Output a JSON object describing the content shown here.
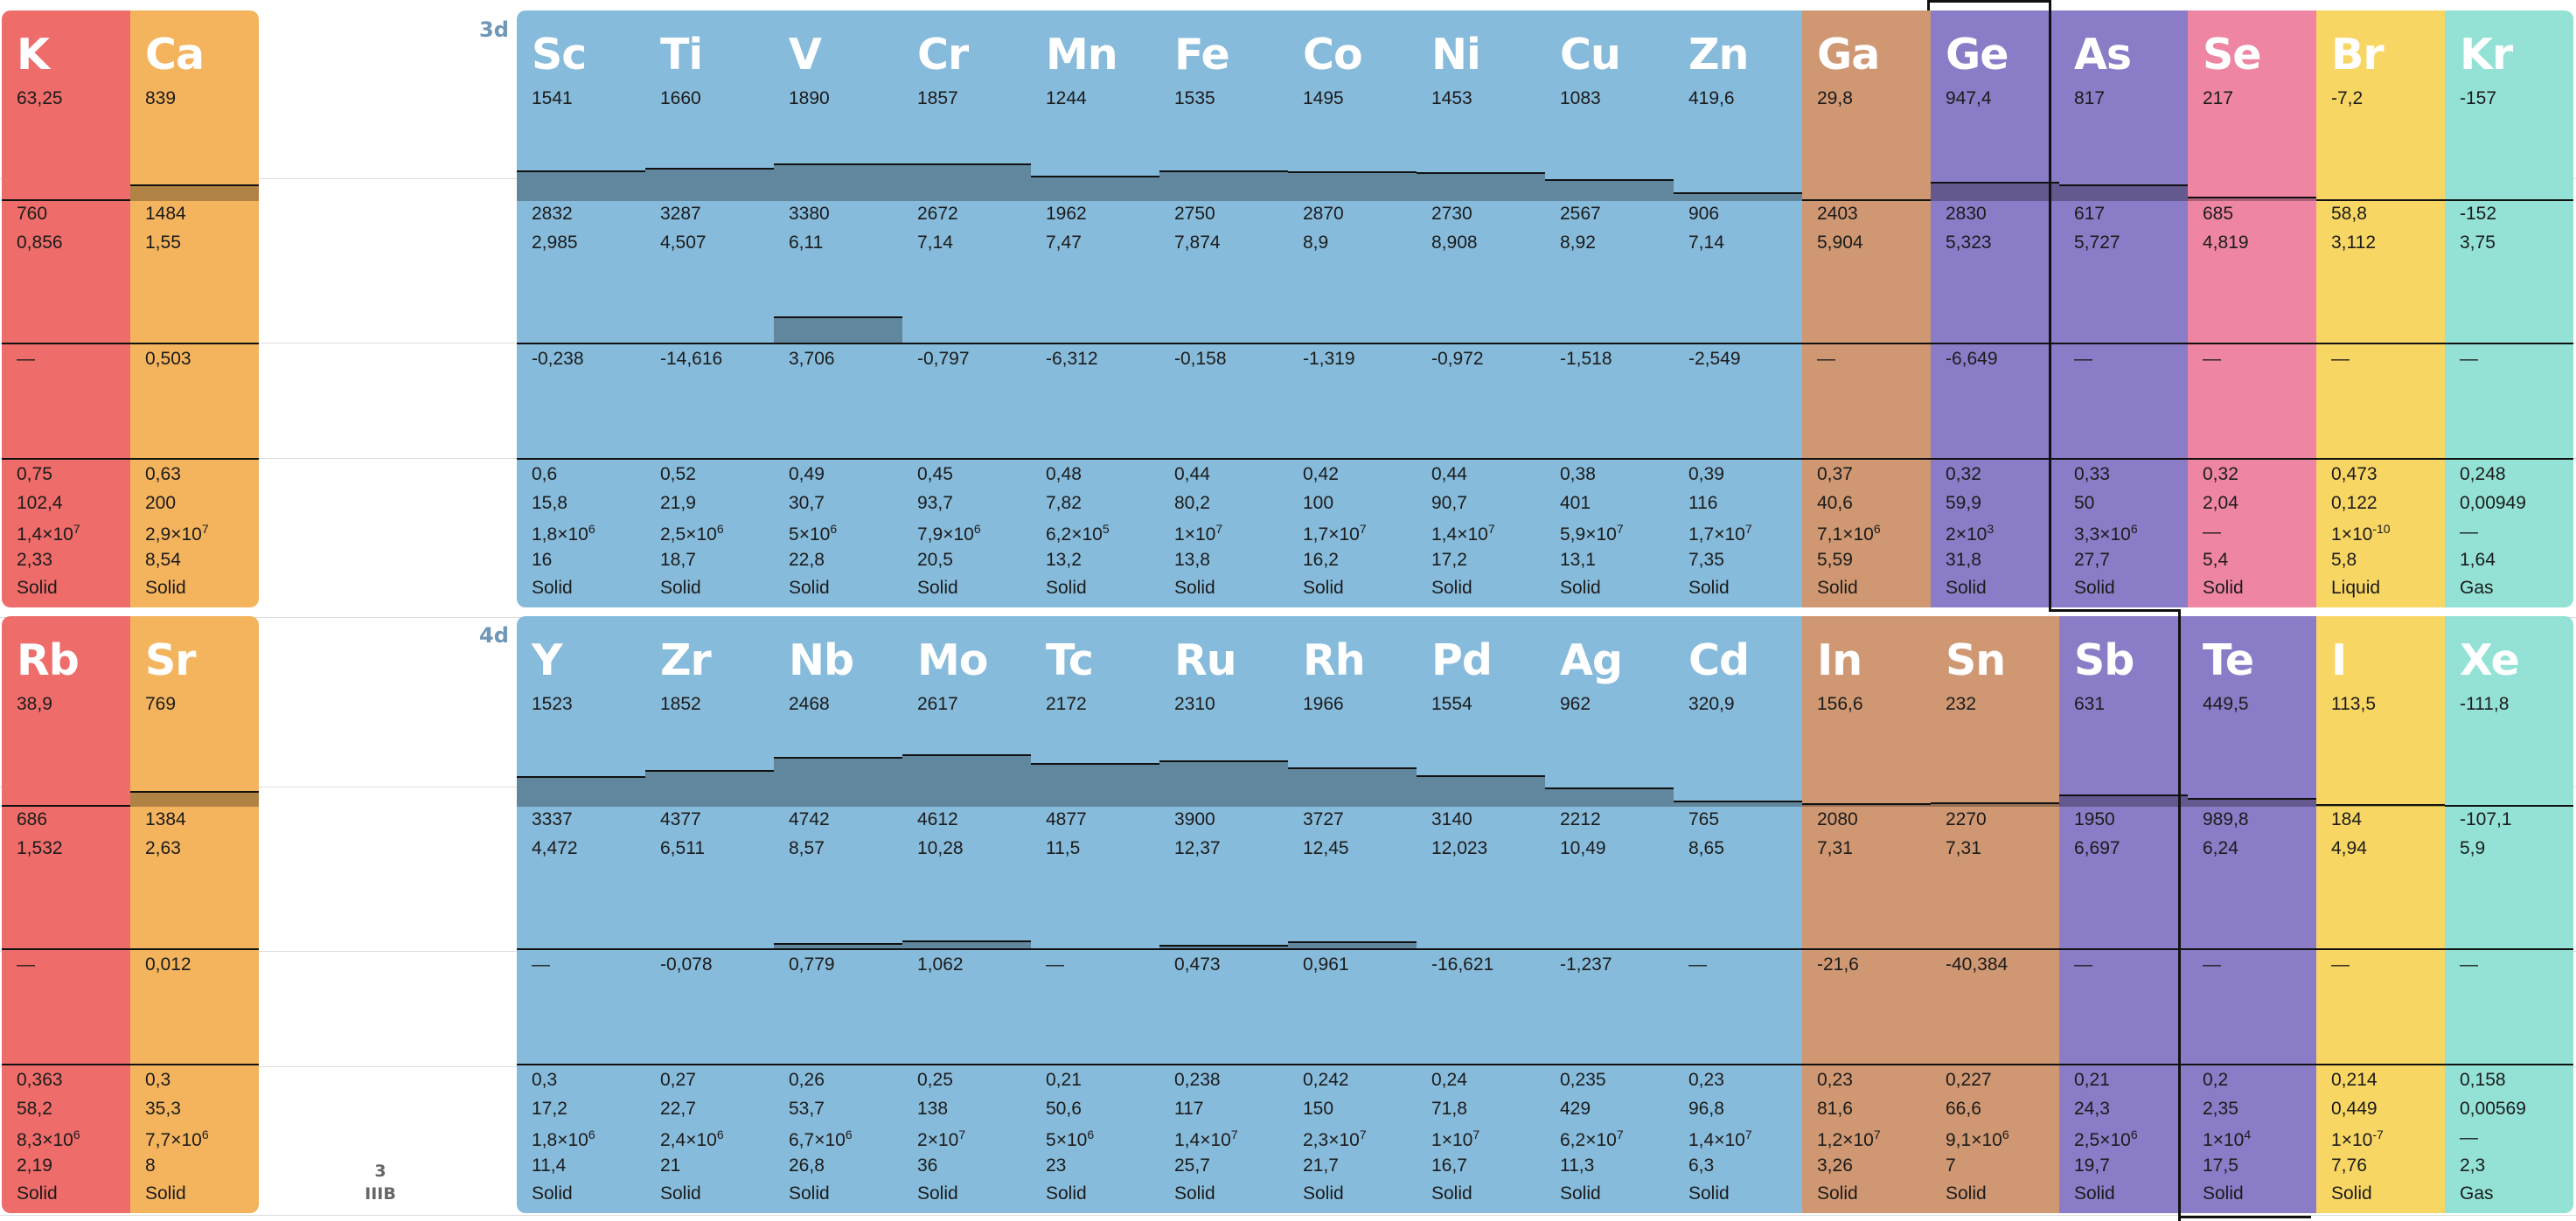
{
  "period_labels": [
    "3d",
    "4d"
  ],
  "group_label": {
    "number": "3",
    "roman": "IIIB"
  },
  "colors": {
    "alkali": "#ee6c69",
    "alkaline": "#f4b45e",
    "transition": "#87bbdb",
    "post_transition": "#cf9772",
    "metalloid": "#8a7cc6",
    "nonmetal": "#ee85a3",
    "halogen": "#f8d664",
    "noble": "#93e2d5"
  },
  "rows": [
    {
      "elements": [
        {
          "symbol": "K",
          "cat": "alkali",
          "melting": "63,25",
          "boiling": "760",
          "density": "0,856",
          "ea": "—",
          "heat": "0,75",
          "thermal": "102,4",
          "cond_m": "1,4",
          "cond_e": "7",
          "hardness": "2,33",
          "phase": "Solid",
          "mp_num": 63.25,
          "bp_num": 760
        },
        {
          "symbol": "Ca",
          "cat": "alkaline",
          "melting": "839",
          "boiling": "1484",
          "density": "1,55",
          "ea": "0,503",
          "heat": "0,63",
          "thermal": "200",
          "cond_m": "2,9",
          "cond_e": "7",
          "hardness": "8,54",
          "phase": "Solid",
          "mp_num": 839,
          "bp_num": 1484
        },
        {
          "symbol": "Sc",
          "cat": "transition",
          "melting": "1541",
          "boiling": "2832",
          "density": "2,985",
          "ea": "-0,238",
          "heat": "0,6",
          "thermal": "15,8",
          "cond_m": "1,8",
          "cond_e": "6",
          "hardness": "16",
          "phase": "Solid",
          "mp_num": 1541,
          "bp_num": 2832
        },
        {
          "symbol": "Ti",
          "cat": "transition",
          "melting": "1660",
          "boiling": "3287",
          "density": "4,507",
          "ea": "-14,616",
          "heat": "0,52",
          "thermal": "21,9",
          "cond_m": "2,5",
          "cond_e": "6",
          "hardness": "18,7",
          "phase": "Solid",
          "mp_num": 1660,
          "bp_num": 3287
        },
        {
          "symbol": "V",
          "cat": "transition",
          "melting": "1890",
          "boiling": "3380",
          "density": "6,11",
          "ea": "3,706",
          "heat": "0,49",
          "thermal": "30,7",
          "cond_m": "5",
          "cond_e": "6",
          "hardness": "22,8",
          "phase": "Solid",
          "mp_num": 1890,
          "bp_num": 3380
        },
        {
          "symbol": "Cr",
          "cat": "transition",
          "melting": "1857",
          "boiling": "2672",
          "density": "7,14",
          "ea": "-0,797",
          "heat": "0,45",
          "thermal": "93,7",
          "cond_m": "7,9",
          "cond_e": "6",
          "hardness": "20,5",
          "phase": "Solid",
          "mp_num": 1857,
          "bp_num": 2672
        },
        {
          "symbol": "Mn",
          "cat": "transition",
          "melting": "1244",
          "boiling": "1962",
          "density": "7,47",
          "ea": "-6,312",
          "heat": "0,48",
          "thermal": "7,82",
          "cond_m": "6,2",
          "cond_e": "5",
          "hardness": "13,2",
          "phase": "Solid",
          "mp_num": 1244,
          "bp_num": 1962
        },
        {
          "symbol": "Fe",
          "cat": "transition",
          "melting": "1535",
          "boiling": "2750",
          "density": "7,874",
          "ea": "-0,158",
          "heat": "0,44",
          "thermal": "80,2",
          "cond_m": "1",
          "cond_e": "7",
          "hardness": "13,8",
          "phase": "Solid",
          "mp_num": 1535,
          "bp_num": 2750
        },
        {
          "symbol": "Co",
          "cat": "transition",
          "melting": "1495",
          "boiling": "2870",
          "density": "8,9",
          "ea": "-1,319",
          "heat": "0,42",
          "thermal": "100",
          "cond_m": "1,7",
          "cond_e": "7",
          "hardness": "16,2",
          "phase": "Solid",
          "mp_num": 1495,
          "bp_num": 2870
        },
        {
          "symbol": "Ni",
          "cat": "transition",
          "melting": "1453",
          "boiling": "2730",
          "density": "8,908",
          "ea": "-0,972",
          "heat": "0,44",
          "thermal": "90,7",
          "cond_m": "1,4",
          "cond_e": "7",
          "hardness": "17,2",
          "phase": "Solid",
          "mp_num": 1453,
          "bp_num": 2730
        },
        {
          "symbol": "Cu",
          "cat": "transition",
          "melting": "1083",
          "boiling": "2567",
          "density": "8,92",
          "ea": "-1,518",
          "heat": "0,38",
          "thermal": "401",
          "cond_m": "5,9",
          "cond_e": "7",
          "hardness": "13,1",
          "phase": "Solid",
          "mp_num": 1083,
          "bp_num": 2567
        },
        {
          "symbol": "Zn",
          "cat": "transition",
          "melting": "419,6",
          "boiling": "906",
          "density": "7,14",
          "ea": "-2,549",
          "heat": "0,39",
          "thermal": "116",
          "cond_m": "1,7",
          "cond_e": "7",
          "hardness": "7,35",
          "phase": "Solid",
          "mp_num": 419.6,
          "bp_num": 906
        },
        {
          "symbol": "Ga",
          "cat": "post_transition",
          "melting": "29,8",
          "boiling": "2403",
          "density": "5,904",
          "ea": "—",
          "heat": "0,37",
          "thermal": "40,6",
          "cond_m": "7,1",
          "cond_e": "6",
          "hardness": "5,59",
          "phase": "Solid",
          "mp_num": 29.8,
          "bp_num": 2403
        },
        {
          "symbol": "Ge",
          "cat": "metalloid",
          "melting": "947,4",
          "boiling": "2830",
          "density": "5,323",
          "ea": "-6,649",
          "heat": "0,32",
          "thermal": "59,9",
          "cond_m": "2",
          "cond_e": "3",
          "hardness": "31,8",
          "phase": "Solid",
          "mp_num": 947.4,
          "bp_num": 2830
        },
        {
          "symbol": "As",
          "cat": "metalloid",
          "melting": "817",
          "boiling": "617",
          "density": "5,727",
          "ea": "—",
          "heat": "0,33",
          "thermal": "50",
          "cond_m": "3,3",
          "cond_e": "6",
          "hardness": "27,7",
          "phase": "Solid",
          "mp_num": 817,
          "bp_num": 617
        },
        {
          "symbol": "Se",
          "cat": "nonmetal",
          "melting": "217",
          "boiling": "685",
          "density": "4,819",
          "ea": "—",
          "heat": "0,32",
          "thermal": "2,04",
          "cond_m": "—",
          "cond_e": "",
          "hardness": "5,4",
          "phase": "Solid",
          "mp_num": 217,
          "bp_num": 685
        },
        {
          "symbol": "Br",
          "cat": "halogen",
          "melting": "-7,2",
          "boiling": "58,8",
          "density": "3,112",
          "ea": "—",
          "heat": "0,473",
          "thermal": "0,122",
          "cond_m": "1",
          "cond_e": "-10",
          "hardness": "5,8",
          "phase": "Liquid",
          "mp_num": -7.2,
          "bp_num": 58.8
        },
        {
          "symbol": "Kr",
          "cat": "noble",
          "melting": "-157",
          "boiling": "-152",
          "density": "3,75",
          "ea": "—",
          "heat": "0,248",
          "thermal": "0,00949",
          "cond_m": "—",
          "cond_e": "",
          "hardness": "1,64",
          "phase": "Gas",
          "mp_num": -157,
          "bp_num": -152
        }
      ]
    },
    {
      "elements": [
        {
          "symbol": "Rb",
          "cat": "alkali",
          "melting": "38,9",
          "boiling": "686",
          "density": "1,532",
          "ea": "—",
          "heat": "0,363",
          "thermal": "58,2",
          "cond_m": "8,3",
          "cond_e": "6",
          "hardness": "2,19",
          "phase": "Solid",
          "mp_num": 38.9,
          "bp_num": 686
        },
        {
          "symbol": "Sr",
          "cat": "alkaline",
          "melting": "769",
          "boiling": "1384",
          "density": "2,63",
          "ea": "0,012",
          "heat": "0,3",
          "thermal": "35,3",
          "cond_m": "7,7",
          "cond_e": "6",
          "hardness": "8",
          "phase": "Solid",
          "mp_num": 769,
          "bp_num": 1384
        },
        {
          "symbol": "Y",
          "cat": "transition",
          "melting": "1523",
          "boiling": "3337",
          "density": "4,472",
          "ea": "—",
          "heat": "0,3",
          "thermal": "17,2",
          "cond_m": "1,8",
          "cond_e": "6",
          "hardness": "11,4",
          "phase": "Solid",
          "mp_num": 1523,
          "bp_num": 3337
        },
        {
          "symbol": "Zr",
          "cat": "transition",
          "melting": "1852",
          "boiling": "4377",
          "density": "6,511",
          "ea": "-0,078",
          "heat": "0,27",
          "thermal": "22,7",
          "cond_m": "2,4",
          "cond_e": "6",
          "hardness": "21",
          "phase": "Solid",
          "mp_num": 1852,
          "bp_num": 4377
        },
        {
          "symbol": "Nb",
          "cat": "transition",
          "melting": "2468",
          "boiling": "4742",
          "density": "8,57",
          "ea": "0,779",
          "heat": "0,26",
          "thermal": "53,7",
          "cond_m": "6,7",
          "cond_e": "6",
          "hardness": "26,8",
          "phase": "Solid",
          "mp_num": 2468,
          "bp_num": 4742
        },
        {
          "symbol": "Mo",
          "cat": "transition",
          "melting": "2617",
          "boiling": "4612",
          "density": "10,28",
          "ea": "1,062",
          "heat": "0,25",
          "thermal": "138",
          "cond_m": "2",
          "cond_e": "7",
          "hardness": "36",
          "phase": "Solid",
          "mp_num": 2617,
          "bp_num": 4612
        },
        {
          "symbol": "Tc",
          "cat": "transition",
          "melting": "2172",
          "boiling": "4877",
          "density": "11,5",
          "ea": "—",
          "heat": "0,21",
          "thermal": "50,6",
          "cond_m": "5",
          "cond_e": "6",
          "hardness": "23",
          "phase": "Solid",
          "mp_num": 2172,
          "bp_num": 4877
        },
        {
          "symbol": "Ru",
          "cat": "transition",
          "melting": "2310",
          "boiling": "3900",
          "density": "12,37",
          "ea": "0,473",
          "heat": "0,238",
          "thermal": "117",
          "cond_m": "1,4",
          "cond_e": "7",
          "hardness": "25,7",
          "phase": "Solid",
          "mp_num": 2310,
          "bp_num": 3900
        },
        {
          "symbol": "Rh",
          "cat": "transition",
          "melting": "1966",
          "boiling": "3727",
          "density": "12,45",
          "ea": "0,961",
          "heat": "0,242",
          "thermal": "150",
          "cond_m": "2,3",
          "cond_e": "7",
          "hardness": "21,7",
          "phase": "Solid",
          "mp_num": 1966,
          "bp_num": 3727
        },
        {
          "symbol": "Pd",
          "cat": "transition",
          "melting": "1554",
          "boiling": "3140",
          "density": "12,023",
          "ea": "-16,621",
          "heat": "0,24",
          "thermal": "71,8",
          "cond_m": "1",
          "cond_e": "7",
          "hardness": "16,7",
          "phase": "Solid",
          "mp_num": 1554,
          "bp_num": 3140
        },
        {
          "symbol": "Ag",
          "cat": "transition",
          "melting": "962",
          "boiling": "2212",
          "density": "10,49",
          "ea": "-1,237",
          "heat": "0,235",
          "thermal": "429",
          "cond_m": "6,2",
          "cond_e": "7",
          "hardness": "11,3",
          "phase": "Solid",
          "mp_num": 962,
          "bp_num": 2212
        },
        {
          "symbol": "Cd",
          "cat": "transition",
          "melting": "320,9",
          "boiling": "765",
          "density": "8,65",
          "ea": "—",
          "heat": "0,23",
          "thermal": "96,8",
          "cond_m": "1,4",
          "cond_e": "7",
          "hardness": "6,3",
          "phase": "Solid",
          "mp_num": 320.9,
          "bp_num": 765
        },
        {
          "symbol": "In",
          "cat": "post_transition",
          "melting": "156,6",
          "boiling": "2080",
          "density": "7,31",
          "ea": "-21,6",
          "heat": "0,23",
          "thermal": "81,6",
          "cond_m": "1,2",
          "cond_e": "7",
          "hardness": "3,26",
          "phase": "Solid",
          "mp_num": 156.6,
          "bp_num": 2080
        },
        {
          "symbol": "Sn",
          "cat": "post_transition",
          "melting": "232",
          "boiling": "2270",
          "density": "7,31",
          "ea": "-40,384",
          "heat": "0,227",
          "thermal": "66,6",
          "cond_m": "9,1",
          "cond_e": "6",
          "hardness": "7",
          "phase": "Solid",
          "mp_num": 232,
          "bp_num": 2270
        },
        {
          "symbol": "Sb",
          "cat": "metalloid",
          "melting": "631",
          "boiling": "1950",
          "density": "6,697",
          "ea": "—",
          "heat": "0,21",
          "thermal": "24,3",
          "cond_m": "2,5",
          "cond_e": "6",
          "hardness": "19,7",
          "phase": "Solid",
          "mp_num": 631,
          "bp_num": 1950
        },
        {
          "symbol": "Te",
          "cat": "metalloid",
          "melting": "449,5",
          "boiling": "989,8",
          "density": "6,24",
          "ea": "—",
          "heat": "0,2",
          "thermal": "2,35",
          "cond_m": "1",
          "cond_e": "4",
          "hardness": "17,5",
          "phase": "Solid",
          "mp_num": 449.5,
          "bp_num": 989.8
        },
        {
          "symbol": "I",
          "cat": "halogen",
          "melting": "113,5",
          "boiling": "184",
          "density": "4,94",
          "ea": "—",
          "heat": "0,214",
          "thermal": "0,449",
          "cond_m": "1",
          "cond_e": "-7",
          "hardness": "7,76",
          "phase": "Solid",
          "mp_num": 113.5,
          "bp_num": 184
        },
        {
          "symbol": "Xe",
          "cat": "noble",
          "melting": "-111,8",
          "boiling": "-107,1",
          "density": "5,9",
          "ea": "—",
          "heat": "0,158",
          "thermal": "0,00569",
          "cond_m": "—",
          "cond_e": "",
          "hardness": "2,3",
          "phase": "Gas",
          "mp_num": -111.8,
          "bp_num": -107.1
        }
      ]
    }
  ]
}
